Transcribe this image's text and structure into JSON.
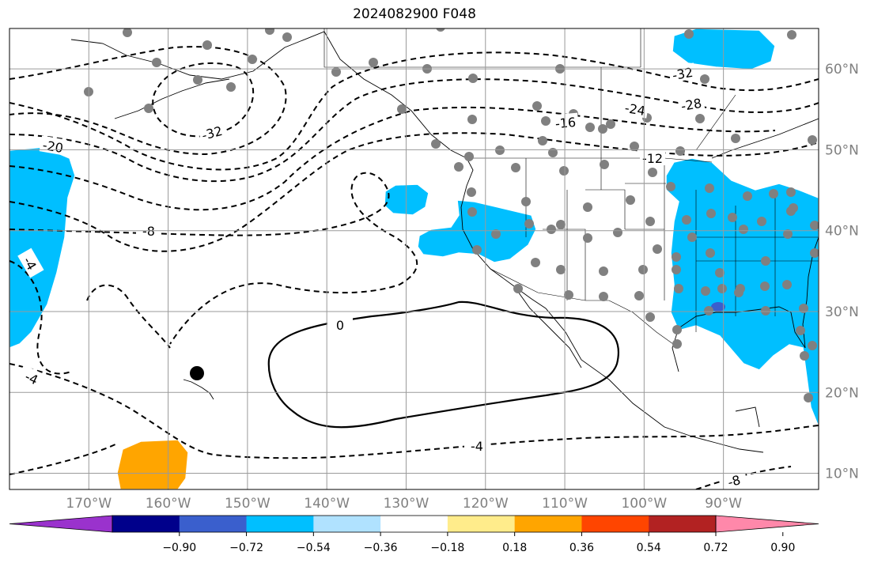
{
  "title": "2024082900 F048",
  "map": {
    "lon_range": [
      -180,
      -78
    ],
    "lat_range": [
      8,
      65
    ],
    "lon_ticks": [
      -170,
      -160,
      -150,
      -140,
      -130,
      -120,
      -110,
      -100,
      -90
    ],
    "lon_labels": [
      "170°W",
      "160°W",
      "150°W",
      "140°W",
      "130°W",
      "120°W",
      "110°W",
      "100°W",
      "90°W"
    ],
    "lat_ticks": [
      10,
      20,
      30,
      40,
      50,
      60
    ],
    "lat_labels": [
      "10°N",
      "20°N",
      "30°N",
      "40°N",
      "50°N",
      "60°N"
    ],
    "grid": true,
    "tick_color": "#808080",
    "contour_labels": [
      "-32",
      "-32",
      "-28",
      "-24",
      "-20",
      "-16",
      "-12",
      "-8",
      "-4",
      "0",
      "-4",
      "-4",
      "-8"
    ],
    "colorbar": {
      "tick_labels": [
        "−0.90",
        "−0.72",
        "−0.54",
        "−0.36",
        "−0.18",
        "0.18",
        "0.36",
        "0.54",
        "0.72",
        "0.90"
      ],
      "colors": [
        "#9a32cd",
        "#00008b",
        "#3a5fcd",
        "#00bfff",
        "#b0e2ff",
        "#ffffff",
        "#ffec8b",
        "#ffa500",
        "#ff4500",
        "#b22222",
        "#ff88aa"
      ]
    }
  }
}
